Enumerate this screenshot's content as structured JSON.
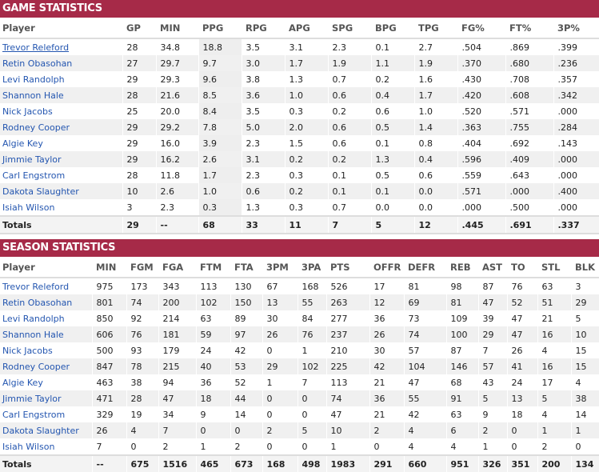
{
  "game": {
    "title": "GAME STATISTICS",
    "headers": [
      "Player",
      "GP",
      "MIN",
      "PPG",
      "RPG",
      "APG",
      "SPG",
      "BPG",
      "TPG",
      "FG%",
      "FT%",
      "3P%"
    ],
    "rows": [
      [
        "Trevor Releford",
        "28",
        "34.8",
        "18.8",
        "3.5",
        "3.1",
        "2.3",
        "0.1",
        "2.7",
        ".504",
        ".869",
        ".399"
      ],
      [
        "Retin Obasohan",
        "27",
        "29.7",
        "9.7",
        "3.0",
        "1.7",
        "1.9",
        "1.1",
        "1.9",
        ".370",
        ".680",
        ".236"
      ],
      [
        "Levi Randolph",
        "29",
        "29.3",
        "9.6",
        "3.8",
        "1.3",
        "0.7",
        "0.2",
        "1.6",
        ".430",
        ".708",
        ".357"
      ],
      [
        "Shannon Hale",
        "28",
        "21.6",
        "8.5",
        "3.6",
        "1.0",
        "0.6",
        "0.4",
        "1.7",
        ".420",
        ".608",
        ".342"
      ],
      [
        "Nick Jacobs",
        "25",
        "20.0",
        "8.4",
        "3.5",
        "0.3",
        "0.2",
        "0.6",
        "1.0",
        ".520",
        ".571",
        ".000"
      ],
      [
        "Rodney Cooper",
        "29",
        "29.2",
        "7.8",
        "5.0",
        "2.0",
        "0.6",
        "0.5",
        "1.4",
        ".363",
        ".755",
        ".284"
      ],
      [
        "Algie Key",
        "29",
        "16.0",
        "3.9",
        "2.3",
        "1.5",
        "0.6",
        "0.1",
        "0.8",
        ".404",
        ".692",
        ".143"
      ],
      [
        "Jimmie Taylor",
        "29",
        "16.2",
        "2.6",
        "3.1",
        "0.2",
        "0.2",
        "1.3",
        "0.4",
        ".596",
        ".409",
        ".000"
      ],
      [
        "Carl Engstrom",
        "28",
        "11.8",
        "1.7",
        "2.3",
        "0.3",
        "0.1",
        "0.5",
        "0.6",
        ".559",
        ".643",
        ".000"
      ],
      [
        "Dakota Slaughter",
        "10",
        "2.6",
        "1.0",
        "0.6",
        "0.2",
        "0.1",
        "0.1",
        "0.0",
        ".571",
        ".000",
        ".400"
      ],
      [
        "Isiah Wilson",
        "3",
        "2.3",
        "0.3",
        "1.3",
        "0.3",
        "0.7",
        "0.0",
        "0.0",
        ".000",
        ".500",
        ".000"
      ]
    ],
    "totals": [
      "Totals",
      "29",
      "--",
      "68",
      "33",
      "11",
      "7",
      "5",
      "12",
      ".445",
      ".691",
      ".337"
    ]
  },
  "season": {
    "title": "SEASON STATISTICS",
    "headers": [
      "Player",
      "MIN",
      "FGM",
      "FGA",
      "FTM",
      "FTA",
      "3PM",
      "3PA",
      "PTS",
      "OFFR",
      "DEFR",
      "REB",
      "AST",
      "TO",
      "STL",
      "BLK"
    ],
    "rows": [
      [
        "Trevor Releford",
        "975",
        "173",
        "343",
        "113",
        "130",
        "67",
        "168",
        "526",
        "17",
        "81",
        "98",
        "87",
        "76",
        "63",
        "3"
      ],
      [
        "Retin Obasohan",
        "801",
        "74",
        "200",
        "102",
        "150",
        "13",
        "55",
        "263",
        "12",
        "69",
        "81",
        "47",
        "52",
        "51",
        "29"
      ],
      [
        "Levi Randolph",
        "850",
        "92",
        "214",
        "63",
        "89",
        "30",
        "84",
        "277",
        "36",
        "73",
        "109",
        "39",
        "47",
        "21",
        "5"
      ],
      [
        "Shannon Hale",
        "606",
        "76",
        "181",
        "59",
        "97",
        "26",
        "76",
        "237",
        "26",
        "74",
        "100",
        "29",
        "47",
        "16",
        "10"
      ],
      [
        "Nick Jacobs",
        "500",
        "93",
        "179",
        "24",
        "42",
        "0",
        "1",
        "210",
        "30",
        "57",
        "87",
        "7",
        "26",
        "4",
        "15"
      ],
      [
        "Rodney Cooper",
        "847",
        "78",
        "215",
        "40",
        "53",
        "29",
        "102",
        "225",
        "42",
        "104",
        "146",
        "57",
        "41",
        "16",
        "15"
      ],
      [
        "Algie Key",
        "463",
        "38",
        "94",
        "36",
        "52",
        "1",
        "7",
        "113",
        "21",
        "47",
        "68",
        "43",
        "24",
        "17",
        "4"
      ],
      [
        "Jimmie Taylor",
        "471",
        "28",
        "47",
        "18",
        "44",
        "0",
        "0",
        "74",
        "36",
        "55",
        "91",
        "5",
        "13",
        "5",
        "38"
      ],
      [
        "Carl Engstrom",
        "329",
        "19",
        "34",
        "9",
        "14",
        "0",
        "0",
        "47",
        "21",
        "42",
        "63",
        "9",
        "18",
        "4",
        "14"
      ],
      [
        "Dakota Slaughter",
        "26",
        "4",
        "7",
        "0",
        "0",
        "2",
        "5",
        "10",
        "2",
        "4",
        "6",
        "2",
        "0",
        "1",
        "1"
      ],
      [
        "Isiah Wilson",
        "7",
        "0",
        "2",
        "1",
        "2",
        "0",
        "0",
        "1",
        "0",
        "4",
        "4",
        "1",
        "0",
        "2",
        "0"
      ]
    ],
    "totals": [
      "Totals",
      "--",
      "675",
      "1516",
      "465",
      "673",
      "168",
      "498",
      "1983",
      "291",
      "660",
      "951",
      "326",
      "351",
      "200",
      "134"
    ]
  },
  "colors": {
    "band": "#a62a48",
    "link": "#2456b0"
  }
}
